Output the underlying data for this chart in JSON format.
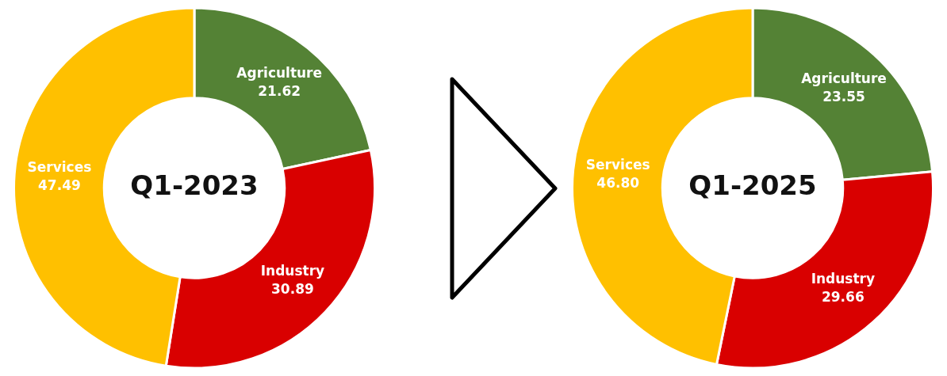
{
  "chart_data": [
    {
      "type": "donut",
      "title": "Q1-2023",
      "categories": [
        "Agriculture",
        "Industry",
        "Services"
      ],
      "values": [
        21.62,
        30.89,
        47.49
      ],
      "colors": [
        "#548235",
        "#d90000",
        "#ffc000"
      ],
      "value_labels": [
        "21.62",
        "30.89",
        "47.49"
      ],
      "legend": false
    },
    {
      "type": "donut",
      "title": "Q1-2025",
      "categories": [
        "Agriculture",
        "Industry",
        "Services"
      ],
      "values": [
        23.55,
        29.66,
        46.8
      ],
      "colors": [
        "#548235",
        "#d90000",
        "#ffc000"
      ],
      "value_labels": [
        "23.55",
        "29.66",
        "46.80"
      ],
      "legend": false
    }
  ]
}
